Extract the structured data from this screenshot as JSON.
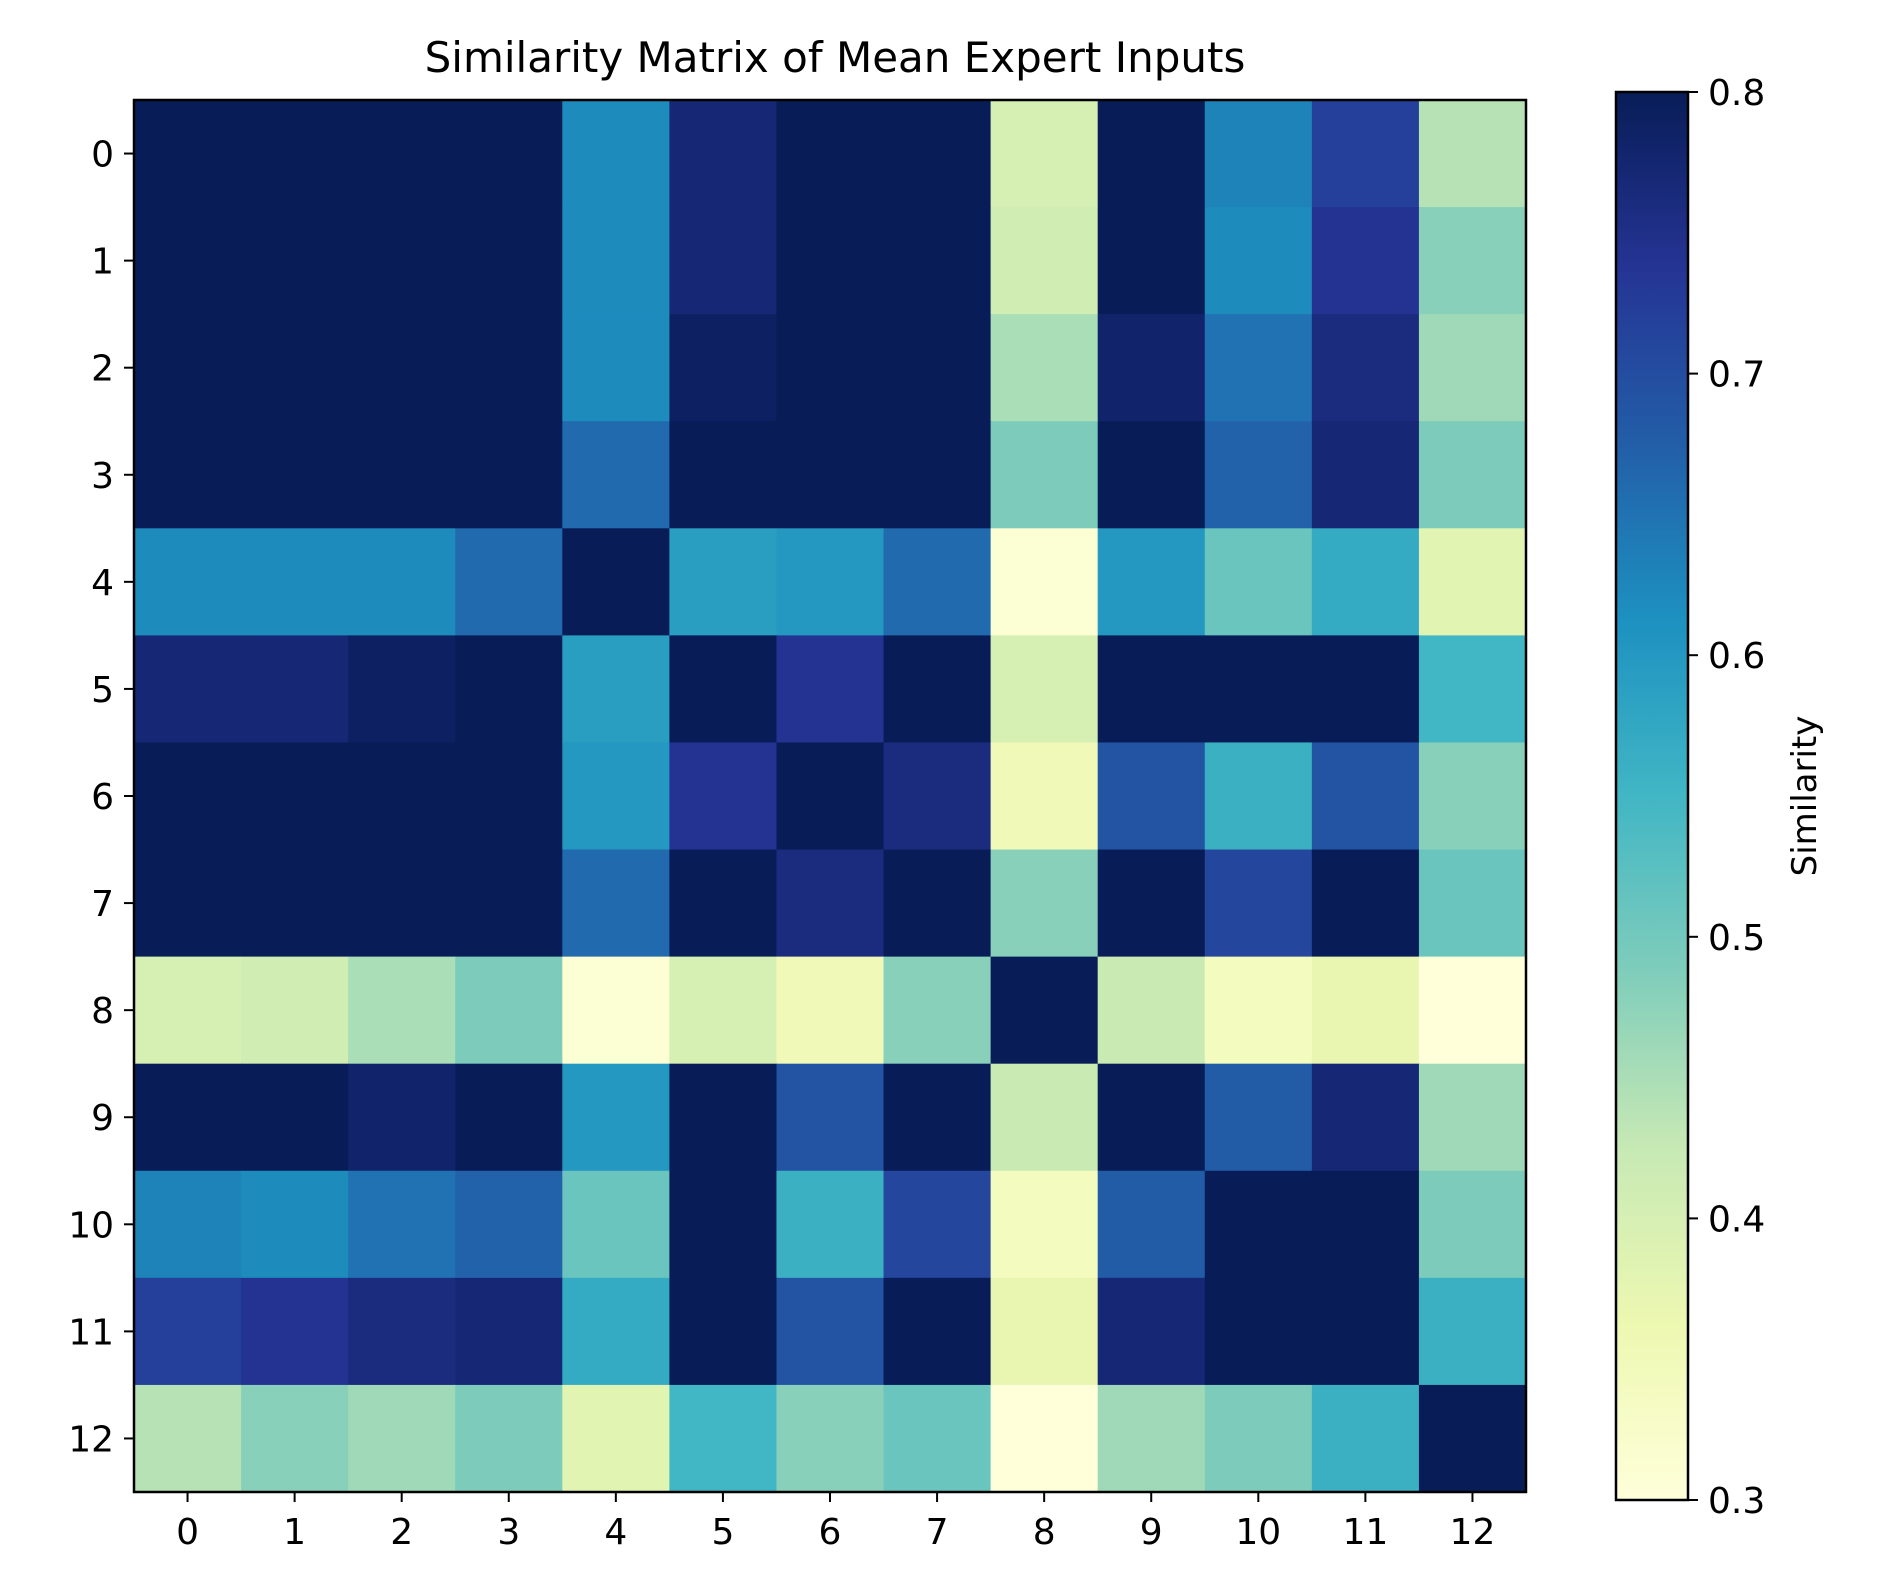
{
  "chart_data": {
    "type": "heatmap",
    "title": "Similarity Matrix of Mean Expert Inputs",
    "xlabel": "",
    "ylabel": "",
    "x_categories": [
      "0",
      "1",
      "2",
      "3",
      "4",
      "5",
      "6",
      "7",
      "8",
      "9",
      "10",
      "11",
      "12"
    ],
    "y_categories": [
      "0",
      "1",
      "2",
      "3",
      "4",
      "5",
      "6",
      "7",
      "8",
      "9",
      "10",
      "11",
      "12"
    ],
    "colormap": "YlGnBu",
    "vmin": 0.3,
    "vmax": 0.8,
    "colorbar": {
      "label": "Similarity",
      "ticks": [
        "0.3",
        "0.4",
        "0.5",
        "0.6",
        "0.7",
        "0.8"
      ],
      "stops": [
        "#ffffd9",
        "#edf8b1",
        "#c7e9b4",
        "#7fcdbb",
        "#41b6c4",
        "#1d91c0",
        "#225ea8",
        "#253494",
        "#081d58"
      ]
    },
    "matrix": [
      [
        1.0,
        0.95,
        0.92,
        0.85,
        0.62,
        0.77,
        0.85,
        0.83,
        0.4,
        0.82,
        0.63,
        0.72,
        0.44
      ],
      [
        0.95,
        1.0,
        0.94,
        0.86,
        0.62,
        0.77,
        0.85,
        0.84,
        0.41,
        0.83,
        0.62,
        0.74,
        0.48
      ],
      [
        0.92,
        0.94,
        1.0,
        0.88,
        0.62,
        0.79,
        0.87,
        0.85,
        0.45,
        0.78,
        0.65,
        0.76,
        0.46
      ],
      [
        0.85,
        0.86,
        0.88,
        1.0,
        0.66,
        0.82,
        0.89,
        0.9,
        0.49,
        0.82,
        0.67,
        0.77,
        0.49
      ],
      [
        0.62,
        0.62,
        0.62,
        0.66,
        1.0,
        0.59,
        0.6,
        0.66,
        0.31,
        0.6,
        0.51,
        0.57,
        0.38
      ],
      [
        0.77,
        0.77,
        0.79,
        0.82,
        0.59,
        1.0,
        0.74,
        0.82,
        0.4,
        0.9,
        0.85,
        0.83,
        0.55
      ],
      [
        0.85,
        0.85,
        0.87,
        0.89,
        0.6,
        0.74,
        1.0,
        0.76,
        0.35,
        0.69,
        0.56,
        0.69,
        0.48
      ],
      [
        0.83,
        0.84,
        0.85,
        0.9,
        0.66,
        0.82,
        0.76,
        1.0,
        0.48,
        0.83,
        0.71,
        0.81,
        0.51
      ],
      [
        0.4,
        0.41,
        0.45,
        0.49,
        0.31,
        0.4,
        0.35,
        0.48,
        1.0,
        0.42,
        0.34,
        0.37,
        0.3
      ],
      [
        0.82,
        0.83,
        0.78,
        0.82,
        0.6,
        0.9,
        0.69,
        0.83,
        0.42,
        1.0,
        0.68,
        0.77,
        0.46
      ],
      [
        0.63,
        0.62,
        0.65,
        0.67,
        0.51,
        0.85,
        0.56,
        0.71,
        0.34,
        0.68,
        1.0,
        0.94,
        0.49
      ],
      [
        0.72,
        0.74,
        0.76,
        0.77,
        0.57,
        0.83,
        0.69,
        0.81,
        0.37,
        0.77,
        0.94,
        1.0,
        0.56
      ],
      [
        0.44,
        0.48,
        0.46,
        0.49,
        0.38,
        0.55,
        0.48,
        0.51,
        0.3,
        0.46,
        0.49,
        0.56,
        1.0
      ]
    ]
  }
}
